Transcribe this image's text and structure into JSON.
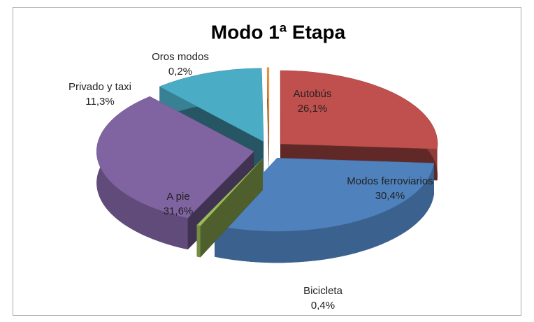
{
  "chart_data": {
    "type": "pie",
    "title": "Modo 1ª Etapa",
    "categories": [
      "Autobús",
      "Modos ferroviarios",
      "Bicicleta",
      "A pie",
      "Privado y taxi",
      "Oros modos"
    ],
    "values": [
      26.1,
      30.4,
      0.4,
      31.6,
      11.3,
      0.2
    ],
    "value_labels": [
      "26,1%",
      "30,4%",
      "0,4%",
      "31,6%",
      "11,3%",
      "0,2%"
    ],
    "colors": [
      "#c0504d",
      "#4f81bd",
      "#9bbb59",
      "#8064a2",
      "#4bacc6",
      "#f79646"
    ]
  }
}
